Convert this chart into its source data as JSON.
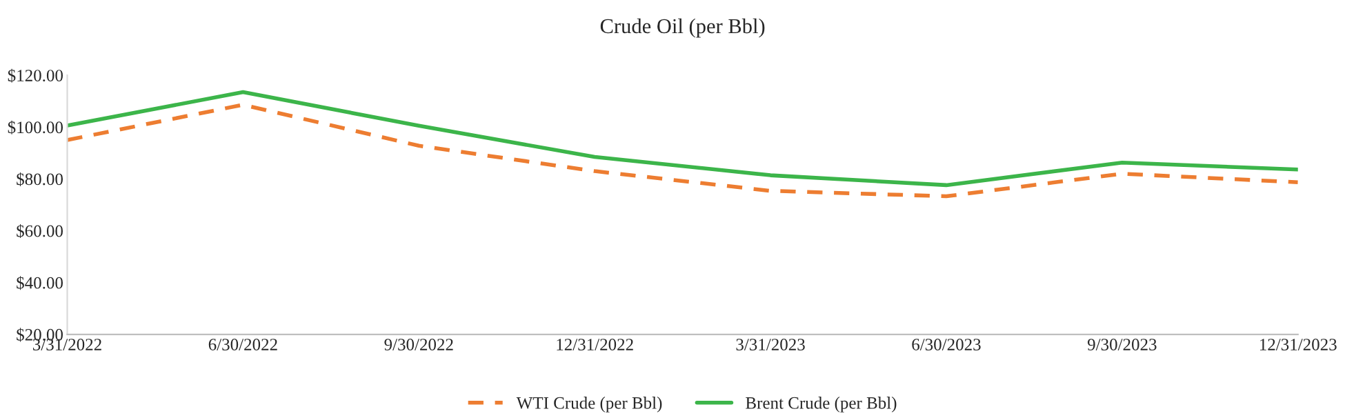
{
  "chart_data": {
    "type": "line",
    "title": "Crude Oil (per Bbl)",
    "categories": [
      "3/31/2022",
      "6/30/2022",
      "9/30/2022",
      "12/31/2022",
      "3/31/2023",
      "6/30/2023",
      "9/30/2023",
      "12/31/2023"
    ],
    "series": [
      {
        "name": "WTI Crude (per Bbl)",
        "color": "#ed7d31",
        "line_style": "dashed",
        "values": [
          95.0,
          108.6,
          92.8,
          83.0,
          75.4,
          73.3,
          82.0,
          78.7
        ]
      },
      {
        "name": "Brent Crude (per Bbl)",
        "color": "#3cb54a",
        "line_style": "solid",
        "values": [
          100.6,
          113.5,
          100.5,
          88.5,
          81.4,
          77.6,
          86.3,
          83.6
        ]
      }
    ],
    "ylim": [
      20,
      120
    ],
    "yticks": [
      {
        "value": 20,
        "label": "$20.00"
      },
      {
        "value": 40,
        "label": "$40.00"
      },
      {
        "value": 60,
        "label": "$60.00"
      },
      {
        "value": 80,
        "label": "$80.00"
      },
      {
        "value": 100,
        "label": "$100.00"
      },
      {
        "value": 120,
        "label": "$120.00"
      }
    ],
    "grid": false,
    "legend": "bottom",
    "marker": "none"
  }
}
